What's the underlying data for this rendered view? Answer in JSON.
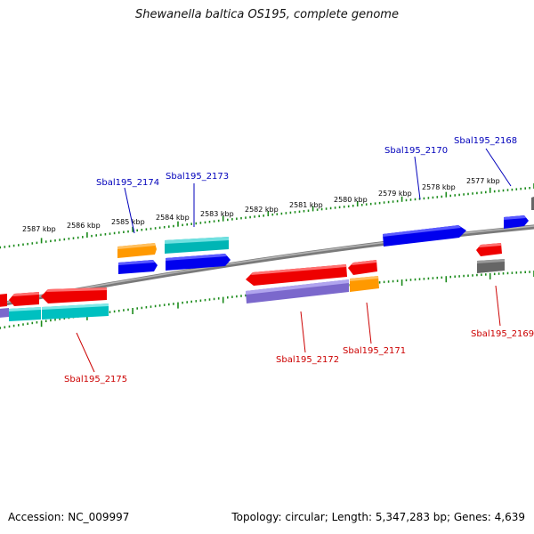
{
  "title": "Shewanella baltica OS195, complete genome",
  "footer": {
    "accession": "Accession: NC_009997",
    "topology": "Topology: circular; Length: 5,347,283 bp; Genes: 4,639"
  },
  "colors": {
    "backbone": "#7a7a7a",
    "tick": "#1a8a1a",
    "forward_label": "#0000bb",
    "reverse_label": "#cc0000"
  },
  "ruler": {
    "unit": "kbp",
    "labels": [
      "2587 kbp",
      "2586 kbp",
      "2585 kbp",
      "2584 kbp",
      "2583 kbp",
      "2582 kbp",
      "2581 kbp",
      "2580 kbp",
      "2579 kbp",
      "2578 kbp",
      "2577 kbp"
    ]
  },
  "genes": [
    {
      "locus": "Sbal195_2174",
      "strand": "forward"
    },
    {
      "locus": "Sbal195_2173",
      "strand": "forward"
    },
    {
      "locus": "Sbal195_2170",
      "strand": "forward"
    },
    {
      "locus": "Sbal195_2168",
      "strand": "forward"
    },
    {
      "locus": "Sbal195_2175",
      "strand": "reverse"
    },
    {
      "locus": "Sbal195_2172",
      "strand": "reverse"
    },
    {
      "locus": "Sbal195_2171",
      "strand": "reverse"
    },
    {
      "locus": "Sbal195_2169",
      "strand": "reverse"
    }
  ]
}
